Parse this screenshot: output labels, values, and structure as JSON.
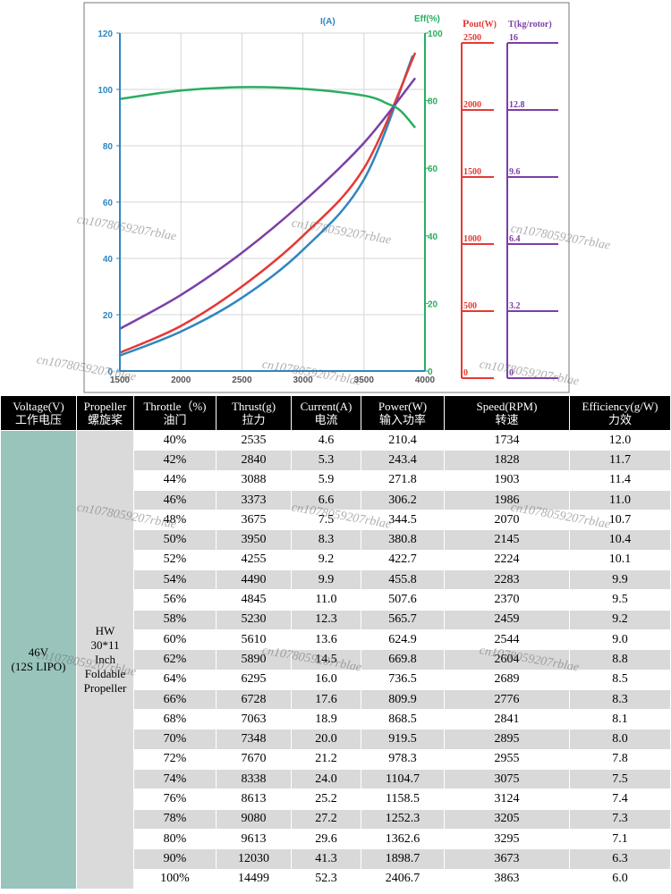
{
  "chart_data": [
    {
      "type": "line",
      "title": "",
      "x": {
        "label": "",
        "ticks": [
          1500,
          2000,
          2500,
          3000,
          3500,
          4000
        ],
        "range": [
          1500,
          4000
        ]
      },
      "y_left": {
        "label": "I(A)",
        "ticks": [
          0,
          20,
          40,
          60,
          80,
          100,
          120
        ],
        "range": [
          0,
          120
        ]
      },
      "y_right": {
        "label": "Eff(%)",
        "ticks": [
          0,
          20,
          40,
          60,
          80,
          100
        ],
        "range": [
          0,
          100
        ]
      },
      "series": [
        {
          "name": "Current",
          "color": "#2e86c1",
          "axis": "left",
          "x": [
            1500,
            2000,
            2500,
            3000,
            3500,
            3900
          ],
          "y": [
            5.5,
            14,
            26,
            43,
            68,
            112
          ]
        },
        {
          "name": "Power",
          "color": "#e53935",
          "axis": "left",
          "x": [
            1500,
            2000,
            2500,
            3000,
            3500,
            3920
          ],
          "y": [
            6.5,
            16,
            30,
            48,
            72,
            113
          ]
        },
        {
          "name": "Thrust",
          "color": "#7b3fa8",
          "axis": "left",
          "x": [
            1500,
            2000,
            2500,
            3000,
            3500,
            3920
          ],
          "y": [
            15,
            27,
            42,
            60,
            81,
            104
          ]
        },
        {
          "name": "Efficiency",
          "color": "#27ae60",
          "axis": "right",
          "x": [
            1500,
            2000,
            2500,
            3000,
            3500,
            3700,
            3800,
            3920
          ],
          "y": [
            80.5,
            83,
            84,
            83.5,
            81.5,
            79,
            77,
            72
          ]
        }
      ]
    },
    {
      "type": "scale",
      "label": "Pout(W)",
      "color": "#e53935",
      "ticks": [
        "2500",
        "2000",
        "1500",
        "1000",
        "500",
        "0"
      ]
    },
    {
      "type": "scale",
      "label": "T(kg/rotor)",
      "color": "#7b3fa8",
      "ticks": [
        "16",
        "12.8",
        "9.6",
        "6.4",
        "3.2",
        "0"
      ]
    }
  ],
  "chart_labels": {
    "left_axis": "I(A)",
    "right_axis": "Eff(%)",
    "pout_P": "P",
    "pout_rest": "out(W)",
    "thrust_label": "T(kg/rotor)"
  },
  "table": {
    "headers": [
      [
        "Voltage(V)",
        "工作电压"
      ],
      [
        "Propeller",
        "螺旋桨"
      ],
      [
        "Throttle（%)",
        "油门"
      ],
      [
        "Thrust(g)",
        "拉力"
      ],
      [
        "Current(A)",
        "电流"
      ],
      [
        "Power(W)",
        "输入功率"
      ],
      [
        "Speed(RPM)",
        "转速"
      ],
      [
        "Efficiency(g/W)",
        "力效"
      ]
    ],
    "voltage": [
      "46V",
      "(12S LIPO)"
    ],
    "propeller": [
      "HW",
      "30*11",
      "Inch",
      "Foldable",
      "Propeller"
    ],
    "rows": [
      [
        "40%",
        "2535",
        "4.6",
        "210.4",
        "1734",
        "12.0"
      ],
      [
        "42%",
        "2840",
        "5.3",
        "243.4",
        "1828",
        "11.7"
      ],
      [
        "44%",
        "3088",
        "5.9",
        "271.8",
        "1903",
        "11.4"
      ],
      [
        "46%",
        "3373",
        "6.6",
        "306.2",
        "1986",
        "11.0"
      ],
      [
        "48%",
        "3675",
        "7.5",
        "344.5",
        "2070",
        "10.7"
      ],
      [
        "50%",
        "3950",
        "8.3",
        "380.8",
        "2145",
        "10.4"
      ],
      [
        "52%",
        "4255",
        "9.2",
        "422.7",
        "2224",
        "10.1"
      ],
      [
        "54%",
        "4490",
        "9.9",
        "455.8",
        "2283",
        "9.9"
      ],
      [
        "56%",
        "4845",
        "11.0",
        "507.6",
        "2370",
        "9.5"
      ],
      [
        "58%",
        "5230",
        "12.3",
        "565.7",
        "2459",
        "9.2"
      ],
      [
        "60%",
        "5610",
        "13.6",
        "624.9",
        "2544",
        "9.0"
      ],
      [
        "62%",
        "5890",
        "14.5",
        "669.8",
        "2604",
        "8.8"
      ],
      [
        "64%",
        "6295",
        "16.0",
        "736.5",
        "2689",
        "8.5"
      ],
      [
        "66%",
        "6728",
        "17.6",
        "809.9",
        "2776",
        "8.3"
      ],
      [
        "68%",
        "7063",
        "18.9",
        "868.5",
        "2841",
        "8.1"
      ],
      [
        "70%",
        "7348",
        "20.0",
        "919.5",
        "2895",
        "8.0"
      ],
      [
        "72%",
        "7670",
        "21.2",
        "978.3",
        "2955",
        "7.8"
      ],
      [
        "74%",
        "8338",
        "24.0",
        "1104.7",
        "3075",
        "7.5"
      ],
      [
        "76%",
        "8613",
        "25.2",
        "1158.5",
        "3124",
        "7.4"
      ],
      [
        "78%",
        "9080",
        "27.2",
        "1252.3",
        "3205",
        "7.3"
      ],
      [
        "80%",
        "9613",
        "29.6",
        "1362.6",
        "3295",
        "7.1"
      ],
      [
        "90%",
        "12030",
        "41.3",
        "1898.7",
        "3673",
        "6.3"
      ],
      [
        "100%",
        "14499",
        "52.3",
        "2406.7",
        "3863",
        "6.0"
      ]
    ]
  },
  "watermark": "cn1078059207rblae"
}
